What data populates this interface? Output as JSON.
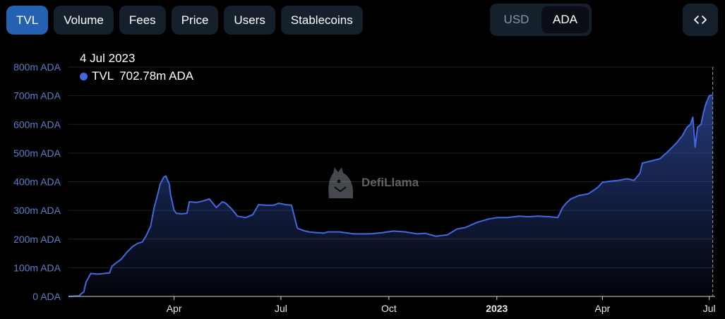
{
  "tabs": [
    {
      "label": "TVL",
      "active": true
    },
    {
      "label": "Volume",
      "active": false
    },
    {
      "label": "Fees",
      "active": false
    },
    {
      "label": "Price",
      "active": false
    },
    {
      "label": "Users",
      "active": false
    },
    {
      "label": "Stablecoins",
      "active": false
    }
  ],
  "currency": {
    "options": [
      "USD",
      "ADA"
    ],
    "selected": "ADA"
  },
  "embed_icon": "code-brackets-icon",
  "watermark": {
    "text": "DefiLlama",
    "icon": "llama-logo-icon"
  },
  "tooltip": {
    "date": "4 Jul 2023",
    "series_label": "TVL",
    "value_text": "702.78m ADA",
    "dot_color": "#4169e1"
  },
  "colors": {
    "line": "#4169e1",
    "accent": "#2561b0",
    "axis_text": "#5b7fc4"
  },
  "chart_data": {
    "type": "area",
    "ylim": [
      0,
      800
    ],
    "y_unit": "m ADA",
    "y_ticks": [
      "0 ADA",
      "100m ADA",
      "200m ADA",
      "300m ADA",
      "400m ADA",
      "500m ADA",
      "600m ADA",
      "700m ADA",
      "800m ADA"
    ],
    "y_tick_values": [
      0,
      100,
      200,
      300,
      400,
      500,
      600,
      700,
      800
    ],
    "x_ticks": [
      {
        "label": "Apr",
        "date": "2022-04-01",
        "bold": false
      },
      {
        "label": "Jul",
        "date": "2022-07-01",
        "bold": false
      },
      {
        "label": "Oct",
        "date": "2022-10-01",
        "bold": false
      },
      {
        "label": "2023",
        "date": "2023-01-01",
        "bold": true
      },
      {
        "label": "Apr",
        "date": "2023-04-01",
        "bold": false
      },
      {
        "label": "Jul",
        "date": "2023-07-01",
        "bold": false
      }
    ],
    "grid": true,
    "legend": "none",
    "series": [
      {
        "name": "TVL",
        "x": [
          "2022-01-01",
          "2022-01-10",
          "2022-01-12",
          "2022-01-14",
          "2022-01-16",
          "2022-01-20",
          "2022-01-25",
          "2022-01-27",
          "2022-02-05",
          "2022-02-07",
          "2022-02-10",
          "2022-02-15",
          "2022-02-20",
          "2022-02-25",
          "2022-03-01",
          "2022-03-05",
          "2022-03-08",
          "2022-03-12",
          "2022-03-15",
          "2022-03-18",
          "2022-03-20",
          "2022-03-23",
          "2022-03-25",
          "2022-03-28",
          "2022-03-29",
          "2022-04-01",
          "2022-04-03",
          "2022-04-07",
          "2022-04-12",
          "2022-04-14",
          "2022-04-20",
          "2022-04-25",
          "2022-05-01",
          "2022-05-07",
          "2022-05-12",
          "2022-05-15",
          "2022-05-20",
          "2022-05-25",
          "2022-06-01",
          "2022-06-07",
          "2022-06-12",
          "2022-06-18",
          "2022-06-25",
          "2022-06-29",
          "2022-07-05",
          "2022-07-10",
          "2022-07-15",
          "2022-07-20",
          "2022-07-25",
          "2022-08-01",
          "2022-08-04",
          "2022-08-06",
          "2022-08-10",
          "2022-08-20",
          "2022-09-01",
          "2022-09-15",
          "2022-09-25",
          "2022-10-05",
          "2022-10-15",
          "2022-10-25",
          "2022-11-01",
          "2022-11-10",
          "2022-11-20",
          "2022-11-28",
          "2022-12-05",
          "2022-12-15",
          "2022-12-25",
          "2023-01-01",
          "2023-01-10",
          "2023-01-20",
          "2023-01-28",
          "2023-02-05",
          "2023-02-15",
          "2023-02-22",
          "2023-02-26",
          "2023-03-01",
          "2023-03-05",
          "2023-03-12",
          "2023-03-20",
          "2023-03-28",
          "2023-04-01",
          "2023-04-08",
          "2023-04-15",
          "2023-04-22",
          "2023-04-28",
          "2023-05-03",
          "2023-05-05",
          "2023-05-10",
          "2023-05-20",
          "2023-05-28",
          "2023-06-03",
          "2023-06-08",
          "2023-06-12",
          "2023-06-15",
          "2023-06-17",
          "2023-06-19",
          "2023-06-21",
          "2023-06-24",
          "2023-06-26",
          "2023-06-28",
          "2023-07-01",
          "2023-07-04"
        ],
        "values": [
          0,
          2,
          10,
          15,
          50,
          80,
          78,
          78,
          82,
          105,
          115,
          130,
          155,
          175,
          185,
          190,
          210,
          245,
          310,
          355,
          390,
          415,
          420,
          390,
          355,
          300,
          290,
          288,
          290,
          330,
          328,
          332,
          340,
          310,
          330,
          325,
          305,
          280,
          275,
          285,
          320,
          318,
          318,
          325,
          320,
          318,
          238,
          230,
          225,
          222,
          222,
          220,
          225,
          225,
          218,
          218,
          222,
          228,
          225,
          218,
          220,
          210,
          215,
          235,
          240,
          258,
          270,
          275,
          275,
          280,
          278,
          280,
          278,
          275,
          310,
          325,
          340,
          352,
          358,
          380,
          398,
          402,
          405,
          410,
          405,
          430,
          465,
          470,
          480,
          510,
          535,
          560,
          590,
          600,
          625,
          520,
          590,
          600,
          640,
          670,
          700,
          702.78
        ]
      }
    ]
  }
}
